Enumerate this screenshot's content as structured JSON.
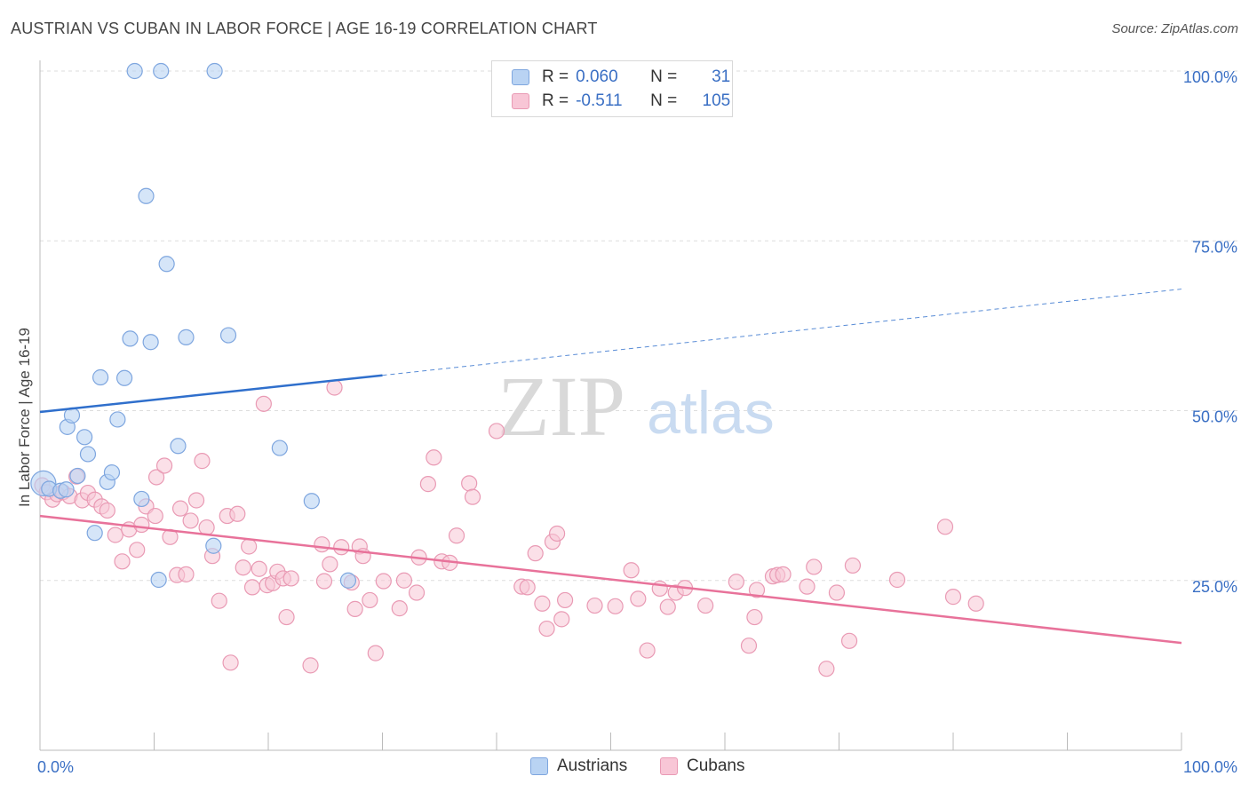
{
  "title": "AUSTRIAN VS CUBAN IN LABOR FORCE | AGE 16-19 CORRELATION CHART",
  "source": "Source: ZipAtlas.com",
  "watermark": {
    "zip": "ZIP",
    "atlas": "atlas"
  },
  "legend": {
    "austrians": {
      "r_label": "R =",
      "r_value": "0.060",
      "n_label": "N =",
      "n_value": "31"
    },
    "cubans": {
      "r_label": "R =",
      "r_value": "-0.511",
      "n_label": "N =",
      "n_value": "105"
    }
  },
  "bottom_legend": {
    "austrians": "Austrians",
    "cubans": "Cubans"
  },
  "colors": {
    "austrians_fill": "#b9d3f3",
    "austrians_stroke": "#7ea6df",
    "austrians_line": "#2f6fcc",
    "cubans_fill": "#f8c6d6",
    "cubans_stroke": "#e99ab4",
    "cubans_line": "#e8729a",
    "axis_label": "#3a6fc4",
    "grid": "#dddddd"
  },
  "chart_data": {
    "type": "scatter",
    "title": "AUSTRIAN VS CUBAN IN LABOR FORCE | AGE 16-19 CORRELATION CHART",
    "xlabel": "",
    "ylabel": "In Labor Force | Age 16-19",
    "xlim": [
      0,
      100
    ],
    "ylim": [
      0,
      100
    ],
    "x_tick_labels": [
      "0.0%",
      "100.0%"
    ],
    "y_tick_labels": [
      "25.0%",
      "50.0%",
      "75.0%",
      "100.0%"
    ],
    "y_ticks": [
      25,
      50,
      75,
      100
    ],
    "grid": true,
    "series": [
      {
        "name": "Austrians",
        "points": [
          [
            0.3,
            39.3
          ],
          [
            0.8,
            38.5
          ],
          [
            1.8,
            38.2
          ],
          [
            2.3,
            38.4
          ],
          [
            2.4,
            47.6
          ],
          [
            2.8,
            49.3
          ],
          [
            3.3,
            40.4
          ],
          [
            3.9,
            46.1
          ],
          [
            4.2,
            43.6
          ],
          [
            4.8,
            32.0
          ],
          [
            5.3,
            54.9
          ],
          [
            5.9,
            39.5
          ],
          [
            6.3,
            40.9
          ],
          [
            6.8,
            48.7
          ],
          [
            7.4,
            54.8
          ],
          [
            7.9,
            60.6
          ],
          [
            8.3,
            100.0
          ],
          [
            8.9,
            37.0
          ],
          [
            9.3,
            81.6
          ],
          [
            9.7,
            60.1
          ],
          [
            10.4,
            25.1
          ],
          [
            10.6,
            100.0
          ],
          [
            11.1,
            71.6
          ],
          [
            12.1,
            44.8
          ],
          [
            12.8,
            60.8
          ],
          [
            15.2,
            30.1
          ],
          [
            15.3,
            100.0
          ],
          [
            16.5,
            61.1
          ],
          [
            21.0,
            44.5
          ],
          [
            23.8,
            36.7
          ],
          [
            27.0,
            25.0
          ]
        ]
      },
      {
        "name": "Cubans",
        "points": [
          [
            0.2,
            39.0
          ],
          [
            0.6,
            38.0
          ],
          [
            1.1,
            36.9
          ],
          [
            1.5,
            37.7
          ],
          [
            2.0,
            38.0
          ],
          [
            2.6,
            37.4
          ],
          [
            3.2,
            40.3
          ],
          [
            3.7,
            36.8
          ],
          [
            4.2,
            37.9
          ],
          [
            4.8,
            36.9
          ],
          [
            5.4,
            35.9
          ],
          [
            5.9,
            35.3
          ],
          [
            6.6,
            31.7
          ],
          [
            7.2,
            27.8
          ],
          [
            7.8,
            32.5
          ],
          [
            8.5,
            29.5
          ],
          [
            8.9,
            33.2
          ],
          [
            9.3,
            35.9
          ],
          [
            10.1,
            34.5
          ],
          [
            10.2,
            40.2
          ],
          [
            10.9,
            41.9
          ],
          [
            11.4,
            31.4
          ],
          [
            12.0,
            25.8
          ],
          [
            12.3,
            35.6
          ],
          [
            12.8,
            25.9
          ],
          [
            13.2,
            33.8
          ],
          [
            13.7,
            36.8
          ],
          [
            14.2,
            42.6
          ],
          [
            14.6,
            32.8
          ],
          [
            15.1,
            28.6
          ],
          [
            15.7,
            22.0
          ],
          [
            16.4,
            34.5
          ],
          [
            16.7,
            12.9
          ],
          [
            17.3,
            34.8
          ],
          [
            17.8,
            26.9
          ],
          [
            18.3,
            30.0
          ],
          [
            18.6,
            24.0
          ],
          [
            19.2,
            26.7
          ],
          [
            19.6,
            51.0
          ],
          [
            19.9,
            24.3
          ],
          [
            20.4,
            24.6
          ],
          [
            20.8,
            26.3
          ],
          [
            21.3,
            25.3
          ],
          [
            21.6,
            19.6
          ],
          [
            22.0,
            25.3
          ],
          [
            23.7,
            12.5
          ],
          [
            24.7,
            30.3
          ],
          [
            24.9,
            24.9
          ],
          [
            25.4,
            27.4
          ],
          [
            25.8,
            53.4
          ],
          [
            26.4,
            29.9
          ],
          [
            27.3,
            24.7
          ],
          [
            27.6,
            20.8
          ],
          [
            28.0,
            30.0
          ],
          [
            28.3,
            28.6
          ],
          [
            28.9,
            22.1
          ],
          [
            29.4,
            14.3
          ],
          [
            30.1,
            24.9
          ],
          [
            31.5,
            20.9
          ],
          [
            31.9,
            25.0
          ],
          [
            33.0,
            23.2
          ],
          [
            33.2,
            28.4
          ],
          [
            34.0,
            39.2
          ],
          [
            34.5,
            43.1
          ],
          [
            35.2,
            27.8
          ],
          [
            35.9,
            27.6
          ],
          [
            36.5,
            31.6
          ],
          [
            37.6,
            39.3
          ],
          [
            37.9,
            37.3
          ],
          [
            40.0,
            47.0
          ],
          [
            42.2,
            24.1
          ],
          [
            42.7,
            24.0
          ],
          [
            43.4,
            29.0
          ],
          [
            44.0,
            21.6
          ],
          [
            44.4,
            17.9
          ],
          [
            44.9,
            30.7
          ],
          [
            45.3,
            31.9
          ],
          [
            45.7,
            19.3
          ],
          [
            46.0,
            22.1
          ],
          [
            48.6,
            21.3
          ],
          [
            50.4,
            21.2
          ],
          [
            51.8,
            26.5
          ],
          [
            52.4,
            22.3
          ],
          [
            53.2,
            14.7
          ],
          [
            54.3,
            23.8
          ],
          [
            55.0,
            21.1
          ],
          [
            55.7,
            23.2
          ],
          [
            56.5,
            23.9
          ],
          [
            58.3,
            21.3
          ],
          [
            61.0,
            24.8
          ],
          [
            62.1,
            15.4
          ],
          [
            62.6,
            19.6
          ],
          [
            62.8,
            23.6
          ],
          [
            64.2,
            25.6
          ],
          [
            64.6,
            25.8
          ],
          [
            65.1,
            25.9
          ],
          [
            67.2,
            24.1
          ],
          [
            67.8,
            27.0
          ],
          [
            68.9,
            12.0
          ],
          [
            69.8,
            23.2
          ],
          [
            70.9,
            16.1
          ],
          [
            71.2,
            27.2
          ],
          [
            75.1,
            25.1
          ],
          [
            79.3,
            32.9
          ],
          [
            80.0,
            22.6
          ],
          [
            82.0,
            21.6
          ]
        ]
      }
    ],
    "trendlines": [
      {
        "series": "Austrians",
        "solid": [
          [
            0,
            49.8
          ],
          [
            30,
            55.2
          ]
        ],
        "dashed": [
          [
            30,
            55.2
          ],
          [
            100,
            67.9
          ]
        ]
      },
      {
        "series": "Cubans",
        "solid": [
          [
            0,
            34.5
          ],
          [
            100,
            15.8
          ]
        ]
      }
    ]
  }
}
